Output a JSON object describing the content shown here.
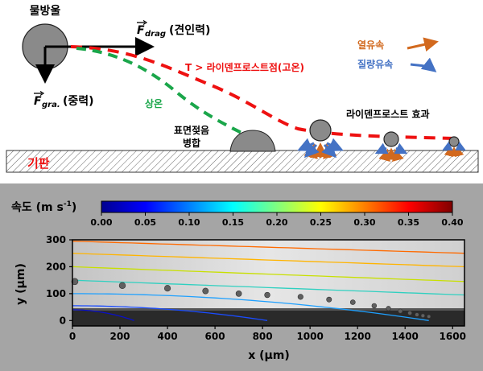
{
  "top": {
    "droplet": "물방울",
    "drag_symbol": "F",
    "drag_sub": "drag",
    "drag_korean": "(견인력)",
    "gra_symbol": "F",
    "gra_sub": "gra.",
    "gra_korean": "(중력)",
    "red_curve_label": "T > 라이덴프로스트점(고온)",
    "green_curve_label": "상온",
    "coalescence_line1": "표면젖음",
    "coalescence_line2": "병합",
    "leidenfrost_effect": "라이덴프로스트 효과",
    "substrate": "기판",
    "legend": [
      {
        "label": "열유속",
        "color": "#d2691e"
      },
      {
        "label": "질량유속",
        "color": "#4472c4"
      }
    ],
    "colors": {
      "red": "#ee1111",
      "green": "#1aa64a"
    }
  },
  "bottom": {
    "colorbar_title": "속도 (m s",
    "colorbar_title_sup": "-1",
    "colorbar_title_end": ")",
    "colorbar_ticks": [
      "0.00",
      "0.05",
      "0.10",
      "0.15",
      "0.20",
      "0.25",
      "0.30",
      "0.35",
      "0.40"
    ],
    "ylabel": "y (µm)",
    "xlabel": "x (µm)",
    "x_ticks": [
      "0",
      "200",
      "400",
      "600",
      "800",
      "1000",
      "1200",
      "1400",
      "1600"
    ],
    "y_ticks": [
      "300",
      "200",
      "100",
      "0"
    ],
    "xlim": [
      0,
      1650
    ],
    "ylim": [
      -20,
      300
    ]
  }
}
